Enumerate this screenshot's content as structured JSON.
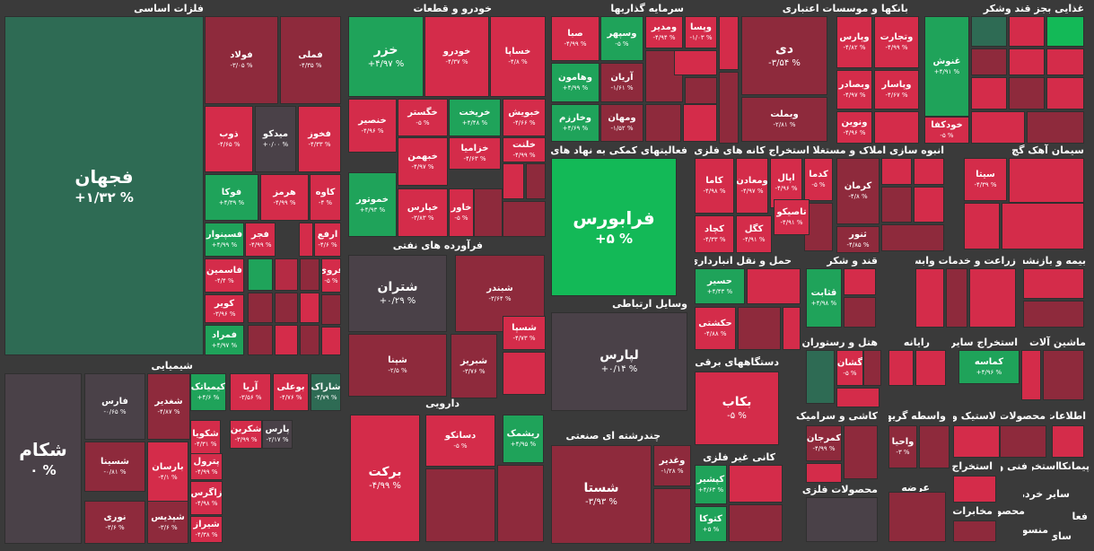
{
  "colors": {
    "strong_red": "#d42c4a",
    "red": "#b52b44",
    "dark_red": "#8e2a3c",
    "neutral": "#4a4148",
    "green": "#1fa35a",
    "bright_green": "#13b957",
    "dark_green": "#2e6b54",
    "background": "#3a3a3a"
  },
  "sections": [
    {
      "key": "s1",
      "title": "فلزات اساسی"
    },
    {
      "key": "s2",
      "title": "خودرو و قطعات"
    },
    {
      "key": "s3",
      "title": "سرمایه گذاریها"
    },
    {
      "key": "s4",
      "title": "بانکها و موسسات اعتباری"
    },
    {
      "key": "s5",
      "title": "غذایی بجز قند وشکر"
    },
    {
      "key": "s6",
      "title": "فعالیتهای کمکی به نهاد های مالی"
    },
    {
      "key": "s7",
      "title": "استخراج کانه های فلزی"
    },
    {
      "key": "s8",
      "title": "انبوه سازی املاک و مستغلات"
    },
    {
      "key": "s9",
      "title": "سیمان آهک گچ"
    },
    {
      "key": "s10",
      "title": "فرآورده های نفتی"
    },
    {
      "key": "s11",
      "title": "وسایل ارتباطی"
    },
    {
      "key": "s12",
      "title": "حمل و نقل انبارداری و"
    },
    {
      "key": "s13",
      "title": "قند و شکر"
    },
    {
      "key": "s14",
      "title": "زراعت و خدمات وابسته"
    },
    {
      "key": "s15",
      "title": "بیمه و بازنشستگی"
    },
    {
      "key": "s16",
      "title": "شیمیایی"
    },
    {
      "key": "s17",
      "title": "دستگاههای برقی"
    },
    {
      "key": "s18",
      "title": "هتل و رستوران"
    },
    {
      "key": "s19",
      "title": "رایانه"
    },
    {
      "key": "s20",
      "title": "استخراج سایر"
    },
    {
      "key": "s21",
      "title": "ماشین آلات و"
    },
    {
      "key": "s22",
      "title": "دارویی"
    },
    {
      "key": "s23",
      "title": "کاشی و سرامیک"
    },
    {
      "key": "s24",
      "title": "واسطه گریهای"
    },
    {
      "key": "s25",
      "title": "لاستیک و"
    },
    {
      "key": "s26",
      "title": "محصولات"
    },
    {
      "key": "s27",
      "title": "اطلاعات"
    },
    {
      "key": "s28",
      "title": "چندرشته ای صنعتی"
    },
    {
      "key": "s29",
      "title": "کانی غیر فلزی"
    },
    {
      "key": "s30",
      "title": "محصولات فلزی"
    },
    {
      "key": "s31",
      "title": "عرضه"
    },
    {
      "key": "s32",
      "title": "استخراج"
    },
    {
      "key": "s33",
      "title": "فنی و"
    },
    {
      "key": "s34",
      "title": "استخرا"
    },
    {
      "key": "s35",
      "title": "پیمانکا"
    },
    {
      "key": "s36",
      "title": "مخابرات"
    },
    {
      "key": "s37",
      "title": "محصو"
    },
    {
      "key": "s38",
      "title": "سایر خرده"
    },
    {
      "key": "s39",
      "title": "فعا"
    },
    {
      "key": "s40",
      "title": "منسو"
    },
    {
      "key": "s41",
      "title": "سای"
    }
  ],
  "tiles": [
    {
      "name": "فجهان",
      "change": "% ۱/۳۲+",
      "color": "dark_green"
    },
    {
      "name": "فولاد",
      "change": "% ۳/۰۵-",
      "color": "dark_red"
    },
    {
      "name": "فملی",
      "change": "% ۴/۳۵-",
      "color": "dark_red"
    },
    {
      "name": "ذوب",
      "change": "% ۴/۶۵-",
      "color": "strong_red"
    },
    {
      "name": "میدکو",
      "change": "% ۰/۰۰+",
      "color": "neutral"
    },
    {
      "name": "فخوز",
      "change": "% ۴/۳۳-",
      "color": "strong_red"
    },
    {
      "name": "فوکا",
      "change": "% ۴/۳۹+",
      "color": "green"
    },
    {
      "name": "هرمز",
      "change": "% ۴/۹۹-",
      "color": "strong_red"
    },
    {
      "name": "کاوه",
      "change": "% ۴-",
      "color": "strong_red"
    },
    {
      "name": "فسپنوار",
      "change": "% ۴/۹۹+",
      "color": "green"
    },
    {
      "name": "فجر",
      "change": "% ۴/۹۹-",
      "color": "strong_red"
    },
    {
      "name": "ارفع",
      "change": "% ۴/۶-",
      "color": "strong_red"
    },
    {
      "name": "فاسمین",
      "change": "% ۴/۴-",
      "color": "strong_red"
    },
    {
      "name": "فروی",
      "change": "% ۵-",
      "color": "strong_red"
    },
    {
      "name": "کویر",
      "change": "% ۳/۹۶-",
      "color": "strong_red"
    },
    {
      "name": "فمراد",
      "change": "% ۴/۹۷+",
      "color": "green"
    },
    {
      "name": "خزر",
      "change": "% ۴/۹۷+",
      "color": "green"
    },
    {
      "name": "خودرو",
      "change": "% ۴/۳۷-",
      "color": "strong_red"
    },
    {
      "name": "خساپا",
      "change": "% ۴/۸-",
      "color": "strong_red"
    },
    {
      "name": "خگستر",
      "change": "% ۵-",
      "color": "strong_red"
    },
    {
      "name": "خریخت",
      "change": "% ۴/۴۸+",
      "color": "green"
    },
    {
      "name": "خبویش",
      "change": "% ۴/۶۶-",
      "color": "strong_red"
    },
    {
      "name": "خنصیر",
      "change": "% ۴/۹۶-",
      "color": "strong_red"
    },
    {
      "name": "خزامیا",
      "change": "% ۴/۶۳-",
      "color": "strong_red"
    },
    {
      "name": "خلنت",
      "change": "% ۴/۹۹-",
      "color": "strong_red"
    },
    {
      "name": "خبهمن",
      "change": "% ۴/۹۷-",
      "color": "strong_red"
    },
    {
      "name": "خموتور",
      "change": "% ۴/۹۳+",
      "color": "green"
    },
    {
      "name": "خپارس",
      "change": "% ۳/۸۳-",
      "color": "strong_red"
    },
    {
      "name": "خاور",
      "change": "% ۵-",
      "color": "strong_red"
    },
    {
      "name": "صبا",
      "change": "% ۴/۹۹-",
      "color": "strong_red"
    },
    {
      "name": "وسپهر",
      "change": "% ۵-",
      "color": "green"
    },
    {
      "name": "ومدیر",
      "change": "% ۴/۹۴-",
      "color": "strong_red"
    },
    {
      "name": "وپسا",
      "change": "% ۱/۰۳-",
      "color": "strong_red"
    },
    {
      "name": "وهامون",
      "change": "% ۴/۹۹+",
      "color": "green"
    },
    {
      "name": "آریان",
      "change": "% ۱/۶۱-",
      "color": "dark_red"
    },
    {
      "name": "وخارزم",
      "change": "% ۴/۶۹+",
      "color": "green"
    },
    {
      "name": "ومهان",
      "change": "% ۱/۵۲-",
      "color": "dark_red"
    },
    {
      "name": "دی",
      "change": "% ۳/۵۴-",
      "color": "dark_red"
    },
    {
      "name": "وبملت",
      "change": "% ۲/۸۱-",
      "color": "dark_red"
    },
    {
      "name": "وپارس",
      "change": "% ۴/۸۲-",
      "color": "strong_red"
    },
    {
      "name": "وتجارت",
      "change": "% ۴/۹۹-",
      "color": "strong_red"
    },
    {
      "name": "وبصادر",
      "change": "% ۴/۹۷-",
      "color": "strong_red"
    },
    {
      "name": "وپاسار",
      "change": "% ۴/۶۷-",
      "color": "strong_red"
    },
    {
      "name": "ونوین",
      "change": "% ۴/۹۶-",
      "color": "strong_red"
    },
    {
      "name": "غنوش",
      "change": "% ۴/۹۱+",
      "color": "green"
    },
    {
      "name": "خودکفا",
      "change": "% ۵-",
      "color": "strong_red"
    },
    {
      "name": "فرابورس",
      "change": "% ۵+",
      "color": "bright_green"
    },
    {
      "name": "کاما",
      "change": "% ۴/۹۸-",
      "color": "strong_red"
    },
    {
      "name": "ومعادن",
      "change": "% ۴/۹۷-",
      "color": "strong_red"
    },
    {
      "name": "اپال",
      "change": "% ۴/۹۶-",
      "color": "strong_red"
    },
    {
      "name": "کدما",
      "change": "% ۵-",
      "color": "strong_red"
    },
    {
      "name": "تاصیکو",
      "change": "% ۴/۹۱-",
      "color": "strong_red"
    },
    {
      "name": "کچاد",
      "change": "% ۴/۳۳-",
      "color": "strong_red"
    },
    {
      "name": "کگل",
      "change": "% ۴/۹۱-",
      "color": "strong_red"
    },
    {
      "name": "کرمان",
      "change": "% ۴/۸-",
      "color": "dark_red"
    },
    {
      "name": "ثنور",
      "change": "% ۴/۸۵-",
      "color": "dark_red"
    },
    {
      "name": "سیتا",
      "change": "% ۴/۳۹-",
      "color": "strong_red"
    },
    {
      "name": "شتران",
      "change": "% ۰/۲۹+",
      "color": "neutral"
    },
    {
      "name": "شبندر",
      "change": "% ۳/۶۴-",
      "color": "dark_red"
    },
    {
      "name": "شپنا",
      "change": "% ۲/۵-",
      "color": "dark_red"
    },
    {
      "name": "شبریز",
      "change": "% ۳/۷۶-",
      "color": "dark_red"
    },
    {
      "name": "شسپا",
      "change": "% ۴/۷۳-",
      "color": "strong_red"
    },
    {
      "name": "لپارس",
      "change": "% ۰/۱۴+",
      "color": "neutral"
    },
    {
      "name": "حسیر",
      "change": "% ۴/۴۳+",
      "color": "green"
    },
    {
      "name": "حکشتی",
      "change": "% ۴/۸۸-",
      "color": "strong_red"
    },
    {
      "name": "قثابت",
      "change": "% ۴/۹۸+",
      "color": "green"
    },
    {
      "name": "شکام",
      "change": "% ۰",
      "color": "neutral"
    },
    {
      "name": "فارس",
      "change": "% ۰/۶۵-",
      "color": "neutral"
    },
    {
      "name": "شغدیر",
      "change": "% ۴/۸۷-",
      "color": "dark_red"
    },
    {
      "name": "شسینا",
      "change": "% ۰/۸۱-",
      "color": "dark_red"
    },
    {
      "name": "بارسان",
      "change": "% ۴/۱-",
      "color": "strong_red"
    },
    {
      "name": "نوری",
      "change": "% ۳/۶-",
      "color": "dark_red"
    },
    {
      "name": "شپدیس",
      "change": "% ۳/۶-",
      "color": "dark_red"
    },
    {
      "name": "کیمیاتک",
      "change": "% ۴/۶+",
      "color": "green"
    },
    {
      "name": "آریا",
      "change": "% ۳/۵۶-",
      "color": "strong_red"
    },
    {
      "name": "بوعلی",
      "change": "% ۴/۷۶-",
      "color": "strong_red"
    },
    {
      "name": "شاراک",
      "change": "% ۴/۷۹-",
      "color": "dark_green"
    },
    {
      "name": "شکویا",
      "change": "% ۴/۳۱-",
      "color": "strong_red"
    },
    {
      "name": "شکربن",
      "change": "% ۳/۹۹-",
      "color": "strong_red"
    },
    {
      "name": "پارس",
      "change": "% ۲/۱۷-",
      "color": "neutral"
    },
    {
      "name": "پترول",
      "change": "% ۴/۹۹-",
      "color": "strong_red"
    },
    {
      "name": "زاگرس",
      "change": "% ۴/۹۸-",
      "color": "strong_red"
    },
    {
      "name": "شیراز",
      "change": "% ۴/۳۸-",
      "color": "strong_red"
    },
    {
      "name": "بکاب",
      "change": "% ۵-",
      "color": "strong_red"
    },
    {
      "name": "گشان",
      "change": "% ۵-",
      "color": "strong_red"
    },
    {
      "name": "کماسه",
      "change": "% ۴/۹۶+",
      "color": "green"
    },
    {
      "name": "برکت",
      "change": "% ۴/۹۹-",
      "color": "strong_red"
    },
    {
      "name": "دسانکو",
      "change": "% ۵-",
      "color": "strong_red"
    },
    {
      "name": "ریشمک",
      "change": "% ۴/۹۵+",
      "color": "green"
    },
    {
      "name": "کمرجان",
      "change": "% ۴/۹۹-",
      "color": "dark_red"
    },
    {
      "name": "واحیا",
      "change": "% ۳-",
      "color": "dark_red"
    },
    {
      "name": "شستا",
      "change": "% ۳/۹۳-",
      "color": "dark_red"
    },
    {
      "name": "وغدیر",
      "change": "% ۱/۲۸-",
      "color": "dark_red"
    },
    {
      "name": "کپشیر",
      "change": "% ۴/۶۳+",
      "color": "green"
    },
    {
      "name": "کتوکا",
      "change": "% ۵+",
      "color": "green"
    }
  ]
}
